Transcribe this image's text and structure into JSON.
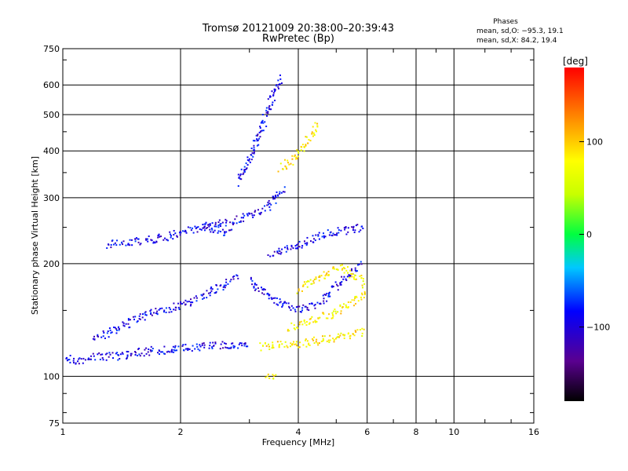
{
  "chart_data": {
    "type": "scatter",
    "title": "Tromsø 20121009 20:38:00–20:39:43",
    "subtitle": "RwPretec (Bp)",
    "xlabel": "Frequency [MHz]",
    "ylabel": "Stationary phase Virtual Height [km]",
    "x_scale": "log",
    "y_scale": "log",
    "xlim": [
      1,
      16
    ],
    "ylim": [
      75,
      750
    ],
    "x_ticks": [
      1,
      2,
      4,
      6,
      8,
      10,
      16
    ],
    "x_tick_labels": [
      "1",
      "2",
      "4",
      "6",
      "8",
      "10",
      "16"
    ],
    "y_ticks": [
      75,
      100,
      200,
      300,
      400,
      500,
      600,
      750
    ],
    "y_tick_labels": [
      "75",
      "100",
      "200",
      "300",
      "400",
      "500",
      "600",
      "750"
    ],
    "grid": true,
    "stats": {
      "heading": "Phases",
      "line1": "mean, sd,O: −95.3, 19.1",
      "line2": "mean, sd,X: 84.2, 19.4"
    },
    "colorbar": {
      "label": "[deg]",
      "range": [
        -180,
        180
      ],
      "ticks": [
        100,
        0,
        -100
      ],
      "tick_labels": [
        "100",
        "0",
        "−100"
      ]
    },
    "series": [
      {
        "mode": "O",
        "phase_deg": -95,
        "traces": [
          {
            "x": [
              1.0,
              1.1,
              1.2,
              1.35,
              1.5,
              1.7,
              1.9,
              2.1,
              2.3,
              2.6,
              3.0
            ],
            "y": [
              112,
              110,
              113,
              113,
              115,
              117,
              118,
              119,
              120,
              121,
              121
            ]
          },
          {
            "x": [
              1.2,
              1.4,
              1.6,
              1.8,
              2.0,
              2.2,
              2.4,
              2.6,
              2.8
            ],
            "y": [
              125,
              135,
              145,
              150,
              155,
              160,
              168,
              175,
              185
            ]
          },
          {
            "x": [
              1.3,
              1.5,
              1.7,
              1.9,
              2.1,
              2.3,
              2.5,
              2.7
            ],
            "y": [
              225,
              228,
              232,
              238,
              245,
              252,
              245,
              240
            ]
          },
          {
            "x": [
              2.3,
              2.5,
              2.7,
              2.9,
              3.1,
              3.3,
              3.5,
              3.7
            ],
            "y": [
              250,
              255,
              260,
              265,
              270,
              280,
              300,
              320
            ]
          },
          {
            "x": [
              2.8,
              3.0,
              3.2,
              3.4,
              3.6
            ],
            "y": [
              330,
              380,
              450,
              540,
              630
            ]
          },
          {
            "x": [
              3.0,
              3.3,
              3.7,
              4.1,
              4.6,
              5.2,
              5.8
            ],
            "y": [
              180,
              165,
              155,
              150,
              160,
              180,
              200
            ]
          },
          {
            "x": [
              3.4,
              3.8,
              4.2,
              4.7,
              5.3,
              5.9
            ],
            "y": [
              210,
              220,
              230,
              240,
              245,
              250
            ]
          }
        ]
      },
      {
        "mode": "X",
        "phase_deg": 84,
        "traces": [
          {
            "x": [
              3.2,
              3.6,
              4.0,
              4.4,
              4.8,
              5.2,
              5.6,
              5.9
            ],
            "y": [
              120,
              121,
              122,
              124,
              126,
              128,
              130,
              132
            ]
          },
          {
            "x": [
              3.8,
              4.1,
              4.4,
              4.8,
              5.2,
              5.6,
              6.0
            ],
            "y": [
              135,
              138,
              142,
              146,
              152,
              160,
              168
            ]
          },
          {
            "x": [
              4.0,
              4.4,
              4.8,
              5.2,
              5.6,
              6.0
            ],
            "y": [
              170,
              180,
              190,
              195,
              185,
              175
            ]
          },
          {
            "x": [
              3.6,
              3.9,
              4.2,
              4.5
            ],
            "y": [
              360,
              380,
              420,
              470
            ]
          },
          {
            "x": [
              3.3,
              3.5
            ],
            "y": [
              101,
              100
            ]
          }
        ]
      }
    ]
  }
}
